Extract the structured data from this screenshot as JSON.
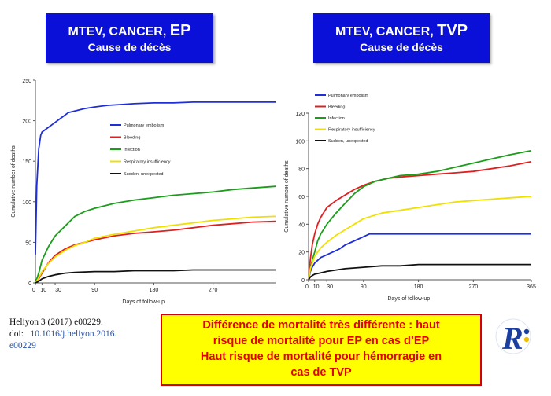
{
  "titles": {
    "left": {
      "line1": "MTEV, CANCER, ",
      "emph": "EP",
      "line2": "Cause de décès"
    },
    "right": {
      "line1": "MTEV, CANCER, ",
      "emph": "TVP",
      "line2": "Cause de décès"
    }
  },
  "reference": {
    "citation": "Heliyon 3 (2017) e00229.",
    "doi_label": "doi:",
    "doi_value": "10.1016/j.heliyon.2016.",
    "doi_suffix": "e00229"
  },
  "note": {
    "line1": "Différence de mortalité très différente : haut",
    "line2": "risque de mortalité pour EP en cas d’EP",
    "line3": "Haut risque de mortalité pour hémorragie en",
    "line4": "cas de TVP"
  },
  "logo": {
    "letter": "R",
    "color_primary": "#1a3fa0",
    "color_accent": "#f0c000"
  },
  "colors": {
    "title_bg": "#0a10d8",
    "note_bg": "#ffff00",
    "note_text": "#e00000"
  },
  "chart_data": [
    {
      "type": "line",
      "title": "MTEV, CANCER, EP",
      "xlabel": "Days of follow-up",
      "ylabel": "Cumulative number of deaths",
      "xlim": [
        0,
        365
      ],
      "ylim": [
        0,
        250
      ],
      "xticks": [
        0,
        10,
        30,
        90,
        180,
        270
      ],
      "yticks": [
        0,
        50,
        100,
        150,
        200,
        250
      ],
      "legend_position": "center",
      "series": [
        {
          "name": "Pulmonary embolism",
          "color": "#1f2fd8",
          "x": [
            0,
            2,
            5,
            8,
            10,
            15,
            20,
            25,
            30,
            40,
            50,
            60,
            75,
            90,
            110,
            130,
            150,
            180,
            210,
            240,
            270,
            300,
            330,
            365
          ],
          "y": [
            35,
            120,
            165,
            182,
            186,
            189,
            192,
            195,
            198,
            204,
            210,
            212,
            215,
            217,
            219,
            220,
            221,
            222,
            222,
            223,
            223,
            223,
            223,
            223
          ]
        },
        {
          "name": "Bleeding",
          "color": "#e02020",
          "x": [
            0,
            5,
            10,
            20,
            30,
            45,
            60,
            75,
            90,
            120,
            150,
            180,
            210,
            240,
            270,
            300,
            330,
            365
          ],
          "y": [
            0,
            5,
            12,
            25,
            34,
            42,
            47,
            50,
            53,
            58,
            61,
            63,
            65,
            68,
            71,
            73,
            75,
            76
          ]
        },
        {
          "name": "Infection",
          "color": "#1a9e1a",
          "x": [
            0,
            5,
            10,
            20,
            30,
            45,
            60,
            75,
            90,
            120,
            150,
            180,
            210,
            240,
            270,
            300,
            330,
            365
          ],
          "y": [
            0,
            12,
            28,
            45,
            58,
            70,
            82,
            88,
            92,
            98,
            102,
            105,
            108,
            110,
            112,
            115,
            117,
            119
          ]
        },
        {
          "name": "Respiratory insufficiency",
          "color": "#f0e000",
          "x": [
            0,
            5,
            10,
            20,
            30,
            45,
            60,
            75,
            90,
            120,
            150,
            180,
            210,
            240,
            270,
            300,
            330,
            365
          ],
          "y": [
            0,
            6,
            14,
            24,
            32,
            40,
            46,
            50,
            55,
            60,
            64,
            68,
            71,
            74,
            77,
            79,
            81,
            82
          ]
        },
        {
          "name": "Sudden, unexpected",
          "color": "#111111",
          "x": [
            0,
            5,
            10,
            20,
            30,
            45,
            60,
            90,
            120,
            150,
            180,
            210,
            240,
            270,
            300,
            330,
            365
          ],
          "y": [
            0,
            2,
            5,
            8,
            10,
            12,
            13,
            14,
            14,
            15,
            15,
            15,
            16,
            16,
            16,
            16,
            16
          ]
        }
      ]
    },
    {
      "type": "line",
      "title": "MTEV, CANCER, TVP",
      "xlabel": "Days of follow-up",
      "ylabel": "Cumulative number of deaths",
      "xlim": [
        0,
        365
      ],
      "ylim": [
        0,
        120
      ],
      "xticks": [
        0,
        10,
        30,
        90,
        180,
        270,
        365
      ],
      "yticks": [
        0,
        20,
        40,
        60,
        80,
        100,
        120
      ],
      "legend_position": "top-left",
      "series": [
        {
          "name": "Pulmonary embolism",
          "color": "#1f2fd8",
          "x": [
            0,
            3,
            6,
            10,
            15,
            20,
            30,
            40,
            50,
            60,
            75,
            90,
            100,
            120,
            180,
            270,
            365
          ],
          "y": [
            0,
            6,
            9,
            12,
            14,
            16,
            18,
            20,
            22,
            25,
            28,
            31,
            33,
            33,
            33,
            33,
            33
          ]
        },
        {
          "name": "Bleeding",
          "color": "#e02020",
          "x": [
            0,
            3,
            6,
            10,
            15,
            20,
            30,
            45,
            60,
            75,
            90,
            110,
            130,
            150,
            180,
            210,
            240,
            270,
            300,
            330,
            365
          ],
          "y": [
            0,
            15,
            25,
            33,
            40,
            45,
            52,
            57,
            61,
            65,
            68,
            71,
            73,
            74,
            75,
            76,
            77,
            78,
            80,
            82,
            85
          ]
        },
        {
          "name": "Infection",
          "color": "#1a9e1a",
          "x": [
            0,
            3,
            6,
            10,
            15,
            20,
            30,
            45,
            60,
            75,
            90,
            110,
            130,
            150,
            180,
            210,
            240,
            270,
            300,
            330,
            365
          ],
          "y": [
            0,
            8,
            14,
            20,
            28,
            33,
            40,
            48,
            55,
            62,
            67,
            71,
            73,
            75,
            76,
            78,
            81,
            84,
            87,
            90,
            93
          ]
        },
        {
          "name": "Respiratory insufficiency",
          "color": "#f0e000",
          "x": [
            0,
            3,
            6,
            10,
            15,
            20,
            30,
            45,
            60,
            75,
            90,
            120,
            150,
            180,
            210,
            240,
            270,
            300,
            330,
            365
          ],
          "y": [
            0,
            8,
            12,
            17,
            20,
            23,
            27,
            32,
            36,
            40,
            44,
            48,
            50,
            52,
            54,
            56,
            57,
            58,
            59,
            60
          ]
        },
        {
          "name": "Sudden, unexpected",
          "color": "#111111",
          "x": [
            0,
            3,
            6,
            10,
            20,
            30,
            45,
            60,
            90,
            120,
            150,
            180,
            270,
            365
          ],
          "y": [
            0,
            2,
            3,
            4,
            5,
            6,
            7,
            8,
            9,
            10,
            10,
            11,
            11,
            11
          ]
        }
      ]
    }
  ]
}
